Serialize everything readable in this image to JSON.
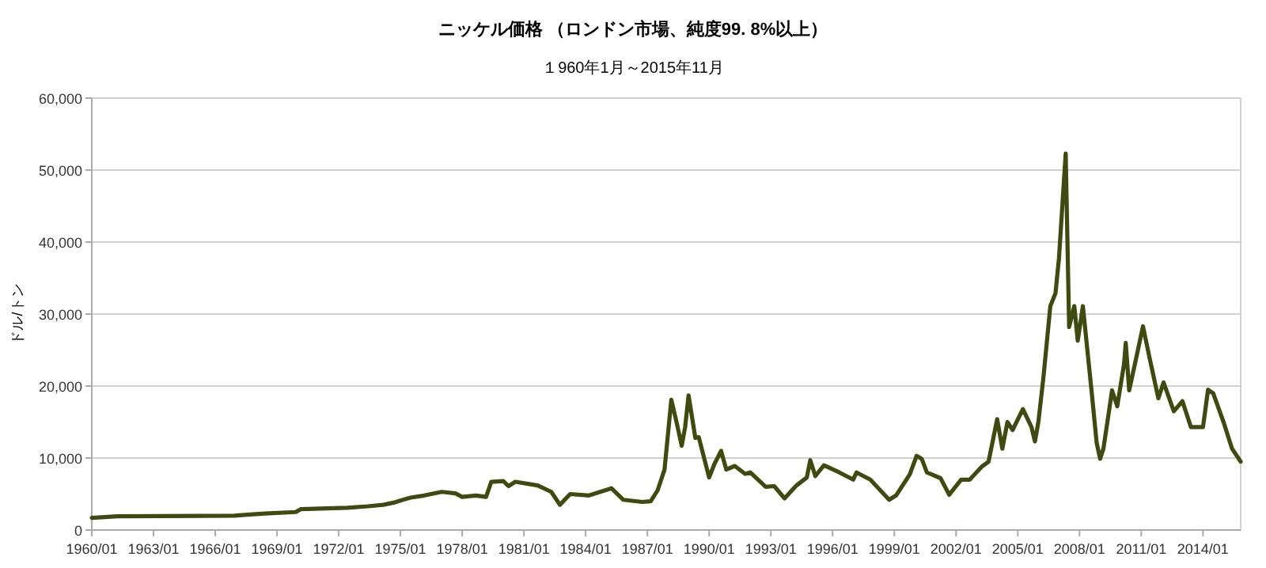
{
  "chart_data": {
    "type": "line",
    "title": "ニッケル価格 （ロンドン市場、純度99. 8%以上）",
    "subtitle": "１960年1月～2015年11月",
    "ylabel": "ドル/トン",
    "x": [
      "1960-01",
      "1961-04",
      "1966-12",
      "1967-06",
      "1968-06",
      "1969-12",
      "1970-03",
      "1971-06",
      "1972-06",
      "1973-06",
      "1974-03",
      "1974-09",
      "1975-01",
      "1975-07",
      "1976-03",
      "1977-01",
      "1977-09",
      "1978-01",
      "1978-09",
      "1979-03",
      "1979-06",
      "1980-01",
      "1980-04",
      "1980-08",
      "1981-09",
      "1982-05",
      "1982-10",
      "1983-04",
      "1984-03",
      "1985-04",
      "1985-11",
      "1986-10",
      "1987-03",
      "1987-07",
      "1987-11",
      "1988-03",
      "1988-06",
      "1988-09",
      "1988-11",
      "1989-01",
      "1989-05",
      "1989-07",
      "1990-01",
      "1990-04",
      "1990-08",
      "1990-11",
      "1991-04",
      "1991-10",
      "1992-01",
      "1992-10",
      "1993-03",
      "1993-09",
      "1994-04",
      "1994-10",
      "1994-12",
      "1995-03",
      "1995-08",
      "1996-05",
      "1997-01",
      "1997-03",
      "1997-11",
      "1998-10",
      "1999-02",
      "1999-10",
      "2000-02",
      "2000-05",
      "2000-08",
      "2001-04",
      "2001-09",
      "2002-04",
      "2002-09",
      "2003-04",
      "2003-08",
      "2004-01",
      "2004-04",
      "2004-07",
      "2004-10",
      "2005-04",
      "2005-09",
      "2005-11",
      "2006-01",
      "2006-04",
      "2006-08",
      "2006-11",
      "2007-01",
      "2007-05",
      "2007-07",
      "2007-10",
      "2007-12",
      "2008-03",
      "2008-08",
      "2008-11",
      "2009-01",
      "2009-03",
      "2009-08",
      "2009-11",
      "2010-03",
      "2010-04",
      "2010-06",
      "2010-10",
      "2011-02",
      "2011-06",
      "2011-11",
      "2012-02",
      "2012-08",
      "2013-01",
      "2013-06",
      "2014-01",
      "2014-04",
      "2014-07",
      "2015-01",
      "2015-06",
      "2015-11"
    ],
    "series": [
      {
        "color": "#3e4a10",
        "values": [
          1700,
          1900,
          2000,
          2100,
          2300,
          2500,
          2900,
          3000,
          3100,
          3300,
          3500,
          3800,
          4100,
          4500,
          4800,
          5300,
          5100,
          4600,
          4800,
          4600,
          6700,
          6800,
          6100,
          6700,
          6200,
          5300,
          3500,
          5000,
          4800,
          5800,
          4200,
          3900,
          4000,
          5500,
          8400,
          18100,
          15000,
          11700,
          14300,
          18700,
          12800,
          12900,
          7300,
          9100,
          11000,
          8400,
          8900,
          7800,
          8000,
          6000,
          6100,
          4400,
          6200,
          7300,
          9700,
          7500,
          9000,
          8000,
          7000,
          8000,
          7000,
          4200,
          4800,
          7700,
          10300,
          9900,
          8000,
          7200,
          4900,
          7000,
          7000,
          8800,
          9500,
          15400,
          11300,
          15000,
          13900,
          16800,
          14300,
          12300,
          15000,
          21200,
          31100,
          32900,
          37700,
          52300,
          28200,
          31100,
          26300,
          31100,
          19400,
          12100,
          9900,
          11300,
          19400,
          17200,
          23000,
          26000,
          19400,
          23800,
          28300,
          23800,
          18300,
          20500,
          16500,
          17900,
          14300,
          14300,
          19500,
          19000,
          15000,
          11300,
          9500
        ]
      }
    ],
    "xlim": [
      "1960-01",
      "2015-11"
    ],
    "xticks": [
      {
        "value": "1960-01",
        "label": "1960/01"
      },
      {
        "value": "1963-01",
        "label": "1963/01"
      },
      {
        "value": "1966-01",
        "label": "1966/01"
      },
      {
        "value": "1969-01",
        "label": "1969/01"
      },
      {
        "value": "1972-01",
        "label": "1972/01"
      },
      {
        "value": "1975-01",
        "label": "1975/01"
      },
      {
        "value": "1978-01",
        "label": "1978/01"
      },
      {
        "value": "1981-01",
        "label": "1981/01"
      },
      {
        "value": "1984-01",
        "label": "1984/01"
      },
      {
        "value": "1987-01",
        "label": "1987/01"
      },
      {
        "value": "1990-01",
        "label": "1990/01"
      },
      {
        "value": "1993-01",
        "label": "1993/01"
      },
      {
        "value": "1996-01",
        "label": "1996/01"
      },
      {
        "value": "1999-01",
        "label": "1999/01"
      },
      {
        "value": "2002-01",
        "label": "2002/01"
      },
      {
        "value": "2005-01",
        "label": "2005/01"
      },
      {
        "value": "2008-01",
        "label": "2008/01"
      },
      {
        "value": "2011-01",
        "label": "2011/01"
      },
      {
        "value": "2014-01",
        "label": "2014/01"
      }
    ],
    "ylim": [
      0,
      60000
    ],
    "yticks": [
      0,
      {
        "value": 10000,
        "label": "10,000"
      },
      {
        "value": 20000,
        "label": "20,000"
      },
      {
        "value": 30000,
        "label": "30,000"
      },
      {
        "value": 40000,
        "label": "40,000"
      },
      {
        "value": 50000,
        "label": "50,000"
      },
      {
        "value": 60000,
        "label": "60,000"
      }
    ],
    "grid": "y"
  }
}
